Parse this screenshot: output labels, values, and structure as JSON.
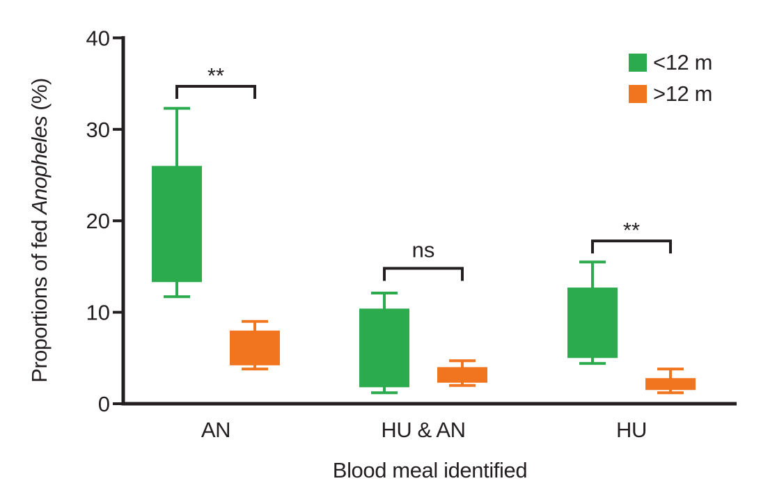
{
  "chart_data": {
    "type": "boxplot",
    "title": "",
    "xlabel": "Blood meal identified",
    "ylabel": "Proportions of fed Anopheles (%)",
    "ylabel_parts": [
      {
        "text": "Proportions of fed ",
        "italic": false
      },
      {
        "text": "Anopheles",
        "italic": true
      },
      {
        "text": " (%)",
        "italic": false
      }
    ],
    "ylim": [
      0,
      40
    ],
    "yticks": [
      0,
      10,
      20,
      30,
      40
    ],
    "grid": false,
    "legend_position": "top-right",
    "axis_color": "#231f20",
    "categories": [
      "AN",
      "HU & AN",
      "HU"
    ],
    "series": [
      {
        "name": "<12 m",
        "color": "#2bab4d",
        "boxes": [
          {
            "category": "AN",
            "whisker_low": 11.7,
            "q1": 13.3,
            "q3": 26.0,
            "whisker_high": 32.3
          },
          {
            "category": "HU & AN",
            "whisker_low": 1.2,
            "q1": 1.8,
            "q3": 10.4,
            "whisker_high": 12.1
          },
          {
            "category": "HU",
            "whisker_low": 4.4,
            "q1": 5.0,
            "q3": 12.7,
            "whisker_high": 15.5
          }
        ]
      },
      {
        "name": ">12 m",
        "color": "#f1741f",
        "boxes": [
          {
            "category": "AN",
            "whisker_low": 3.8,
            "q1": 4.2,
            "q3": 8.0,
            "whisker_high": 9.0
          },
          {
            "category": "HU & AN",
            "whisker_low": 2.0,
            "q1": 2.3,
            "q3": 4.0,
            "whisker_high": 4.7
          },
          {
            "category": "HU",
            "whisker_low": 1.2,
            "q1": 1.5,
            "q3": 2.8,
            "whisker_high": 3.8
          }
        ]
      }
    ],
    "significance": [
      {
        "category": "AN",
        "label": "**",
        "bracket_y": 34.7
      },
      {
        "category": "HU & AN",
        "label": "ns",
        "bracket_y": 14.8
      },
      {
        "category": "HU",
        "label": "**",
        "bracket_y": 17.8
      }
    ],
    "legend": {
      "entries": [
        {
          "label": "<12 m",
          "color": "#2bab4d"
        },
        {
          "label": ">12 m",
          "color": "#f1741f"
        }
      ]
    }
  }
}
